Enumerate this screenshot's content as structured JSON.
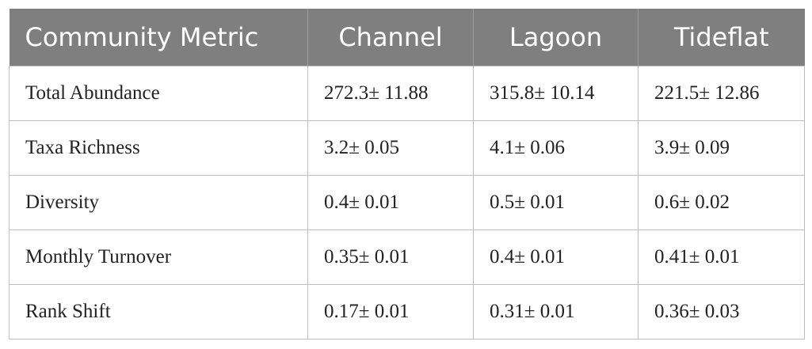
{
  "table": {
    "header": [
      "Community Metric",
      "Channel",
      "Lagoon",
      "Tideflat"
    ],
    "rows": [
      [
        "Total Abundance",
        "272.3± 11.88",
        "315.8± 10.14",
        "221.5± 12.86"
      ],
      [
        "Taxa Richness",
        "3.2± 0.05",
        "4.1± 0.06",
        "3.9± 0.09"
      ],
      [
        "Diversity",
        "0.4± 0.01",
        "0.5± 0.01",
        "0.6± 0.02"
      ],
      [
        "Monthly Turnover",
        "0.35± 0.01",
        "0.4± 0.01",
        "0.41± 0.01"
      ],
      [
        "Rank Shift",
        "0.17± 0.01",
        "0.31± 0.01",
        "0.36± 0.03"
      ]
    ]
  }
}
